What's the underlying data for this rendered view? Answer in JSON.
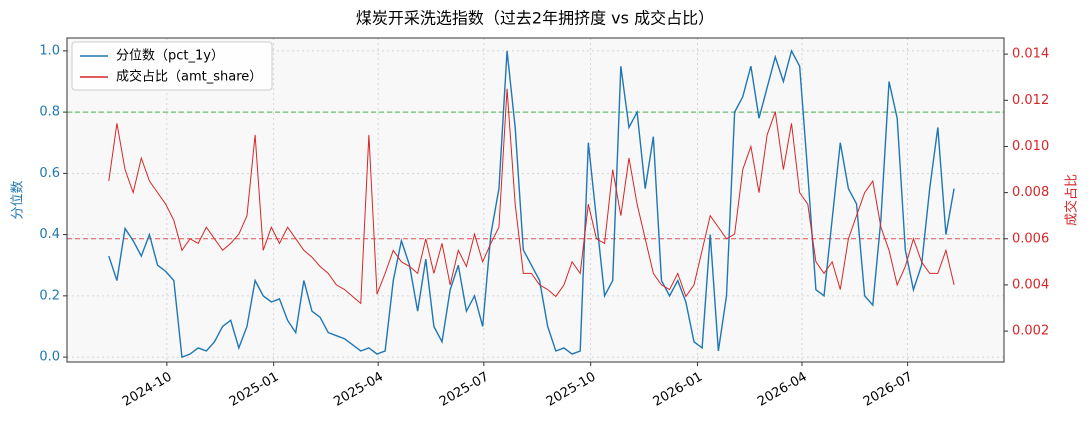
{
  "chart_data": {
    "type": "line",
    "title": "煤炭开采洗选指数（过去2年拥挤度 vs 成交占比）",
    "y_label": "分位数",
    "y2_label": "成交占比",
    "x": [
      "2024-08-12",
      "2024-08-19",
      "2024-08-26",
      "2024-09-02",
      "2024-09-09",
      "2024-09-16",
      "2024-09-23",
      "2024-09-30",
      "2024-10-07",
      "2024-10-14",
      "2024-10-21",
      "2024-10-28",
      "2024-11-04",
      "2024-11-11",
      "2024-11-18",
      "2024-11-25",
      "2024-12-02",
      "2024-12-09",
      "2024-12-16",
      "2024-12-23",
      "2024-12-30",
      "2025-01-06",
      "2025-01-13",
      "2025-01-20",
      "2025-01-27",
      "2025-02-03",
      "2025-02-10",
      "2025-02-17",
      "2025-02-24",
      "2025-03-03",
      "2025-03-10",
      "2025-03-17",
      "2025-03-24",
      "2025-03-31",
      "2025-04-07",
      "2025-04-14",
      "2025-04-21",
      "2025-04-28",
      "2025-05-05",
      "2025-05-12",
      "2025-05-19",
      "2025-05-26",
      "2025-06-02",
      "2025-06-09",
      "2025-06-16",
      "2025-06-23",
      "2025-06-30",
      "2025-07-07",
      "2025-07-14",
      "2025-07-21",
      "2025-07-28",
      "2025-08-04",
      "2025-08-11",
      "2025-08-18",
      "2025-08-25",
      "2025-09-01",
      "2025-09-08",
      "2025-09-15",
      "2025-09-22",
      "2025-09-29",
      "2025-10-06",
      "2025-10-13",
      "2025-10-20",
      "2025-10-27",
      "2025-11-03",
      "2025-11-10",
      "2025-11-17",
      "2025-11-24",
      "2025-12-01",
      "2025-12-08",
      "2025-12-15",
      "2025-12-22",
      "2025-12-29",
      "2026-01-05",
      "2026-01-12",
      "2026-01-19",
      "2026-01-26",
      "2026-02-02",
      "2026-02-09",
      "2026-02-16",
      "2026-02-23",
      "2026-03-02",
      "2026-03-09",
      "2026-03-16",
      "2026-03-23",
      "2026-03-30",
      "2026-04-06",
      "2026-04-13",
      "2026-04-20",
      "2026-04-27",
      "2026-05-04",
      "2026-05-11",
      "2026-05-18",
      "2026-05-25",
      "2026-06-01",
      "2026-06-08",
      "2026-06-15",
      "2026-06-22",
      "2026-06-29",
      "2026-07-06",
      "2026-07-13",
      "2026-07-20",
      "2026-07-27",
      "2026-08-03",
      "2026-08-10"
    ],
    "series": [
      {
        "name": "分位数（pct_1y）",
        "color": "#1f77b4",
        "axis": "y",
        "values": [
          0.33,
          0.25,
          0.42,
          0.38,
          0.33,
          0.4,
          0.3,
          0.28,
          0.25,
          0.0,
          0.01,
          0.03,
          0.02,
          0.05,
          0.1,
          0.12,
          0.03,
          0.1,
          0.25,
          0.2,
          0.18,
          0.19,
          0.12,
          0.08,
          0.25,
          0.15,
          0.13,
          0.08,
          0.07,
          0.06,
          0.04,
          0.02,
          0.03,
          0.01,
          0.02,
          0.25,
          0.38,
          0.3,
          0.15,
          0.32,
          0.1,
          0.05,
          0.22,
          0.3,
          0.15,
          0.2,
          0.1,
          0.4,
          0.55,
          1.0,
          0.75,
          0.35,
          0.3,
          0.25,
          0.1,
          0.02,
          0.03,
          0.01,
          0.02,
          0.7,
          0.45,
          0.2,
          0.25,
          0.95,
          0.75,
          0.8,
          0.55,
          0.72,
          0.25,
          0.2,
          0.25,
          0.18,
          0.05,
          0.03,
          0.4,
          0.02,
          0.2,
          0.8,
          0.85,
          0.95,
          0.78,
          0.88,
          0.98,
          0.9,
          1.0,
          0.95,
          0.6,
          0.22,
          0.2,
          0.45,
          0.7,
          0.55,
          0.5,
          0.2,
          0.17,
          0.45,
          0.9,
          0.78,
          0.35,
          0.22,
          0.3,
          0.55,
          0.75,
          0.4,
          0.55
        ]
      },
      {
        "name": "成交占比（amt_share）",
        "color": "#d62728",
        "axis": "y2",
        "values": [
          0.0085,
          0.011,
          0.009,
          0.008,
          0.0095,
          0.0085,
          0.008,
          0.0075,
          0.0068,
          0.0055,
          0.006,
          0.0058,
          0.0065,
          0.006,
          0.0055,
          0.0058,
          0.0062,
          0.007,
          0.0105,
          0.0055,
          0.0065,
          0.0058,
          0.0065,
          0.006,
          0.0055,
          0.0052,
          0.0048,
          0.0045,
          0.004,
          0.0038,
          0.0035,
          0.0032,
          0.0105,
          0.0036,
          0.0045,
          0.0055,
          0.005,
          0.0048,
          0.0045,
          0.006,
          0.0045,
          0.0058,
          0.004,
          0.0055,
          0.0048,
          0.0062,
          0.005,
          0.0058,
          0.0065,
          0.0125,
          0.0075,
          0.0045,
          0.0045,
          0.004,
          0.0038,
          0.0035,
          0.004,
          0.005,
          0.0045,
          0.0075,
          0.006,
          0.0058,
          0.009,
          0.007,
          0.0095,
          0.0075,
          0.006,
          0.0045,
          0.004,
          0.0038,
          0.0045,
          0.0035,
          0.004,
          0.0055,
          0.007,
          0.0065,
          0.006,
          0.0062,
          0.009,
          0.01,
          0.008,
          0.0105,
          0.0115,
          0.009,
          0.011,
          0.008,
          0.0075,
          0.005,
          0.0045,
          0.005,
          0.0038,
          0.006,
          0.007,
          0.008,
          0.0085,
          0.0065,
          0.0055,
          0.004,
          0.0048,
          0.006,
          0.005,
          0.0045,
          0.0045,
          0.0055,
          0.004
        ]
      }
    ],
    "xlim": [
      "2024-07-07",
      "2026-09-22"
    ],
    "xticks": [
      {
        "value": "2024-10-01",
        "label": "2024-10"
      },
      {
        "value": "2025-01-01",
        "label": "2025-01"
      },
      {
        "value": "2025-04-01",
        "label": "2025-04"
      },
      {
        "value": "2025-07-01",
        "label": "2025-07"
      },
      {
        "value": "2025-10-01",
        "label": "2025-10"
      },
      {
        "value": "2026-01-01",
        "label": "2026-01"
      },
      {
        "value": "2026-04-01",
        "label": "2026-04"
      },
      {
        "value": "2026-07-01",
        "label": "2026-07"
      }
    ],
    "ylim": [
      -0.016,
      1.042
    ],
    "yticks": [
      {
        "value": 0,
        "label": "0.0"
      },
      0.2,
      0.4,
      0.6,
      0.8,
      {
        "value": 1,
        "label": "1.0"
      }
    ],
    "y2lim": [
      0.00066,
      0.0147
    ],
    "y2ticks": [
      0.002,
      0.004,
      0.006,
      0.008,
      {
        "value": 0.01,
        "label": "0.010"
      },
      0.012,
      0.014
    ],
    "hlines": [
      {
        "axis": "y",
        "value": 0.8,
        "color": "#4caf50"
      },
      {
        "axis": "y2",
        "value": 0.006,
        "color": "#e05050"
      }
    ],
    "grid": true,
    "legend": "upper-left"
  }
}
